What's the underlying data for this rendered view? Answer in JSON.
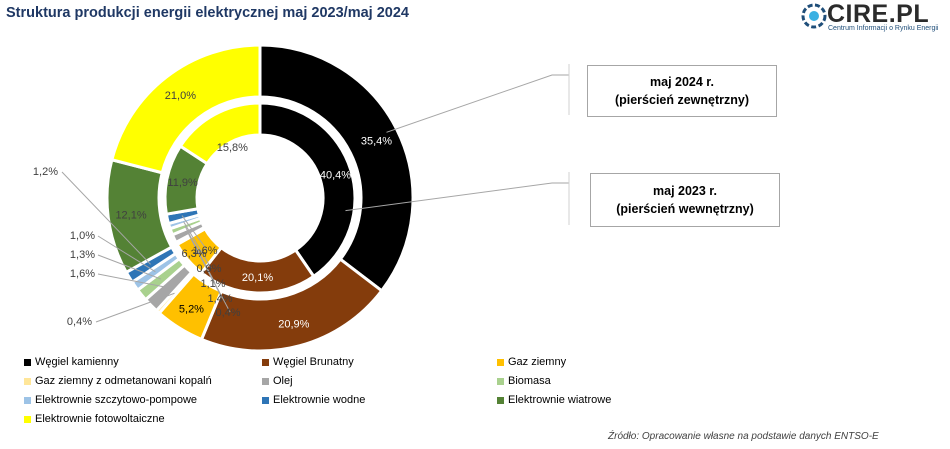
{
  "title": "Struktura produkcji energii elektrycznej maj 2023/maj 2024",
  "logo": {
    "text": "CIRE.PL",
    "subtitle": "Centrum Informacji o Rynku Energii"
  },
  "callouts": {
    "outer": {
      "line1": "maj 2024 r.",
      "line2": "(pierścień zewnętrzny)"
    },
    "inner": {
      "line1": "maj 2023 r.",
      "line2": "(pierścień wewnętrzny)"
    }
  },
  "source": "Źródło: Opracowanie własne na podstawie danych ENTSO-E",
  "chart_data": {
    "type": "doughnut",
    "categories": [
      "Węgiel kamienny",
      "Węgiel Brunatny",
      "Gaz  ziemny",
      "Gaz ziemny z odmetanowani kopalń",
      "Olej",
      "Biomasa",
      "Elektrownie szczytowo-pompowe",
      "Elektrownie wodne",
      "Elektrownie wiatrowe",
      "Elektrownie fotowoltaiczne"
    ],
    "colors": [
      "#000000",
      "#843c0c",
      "#ffc000",
      "#ffe699",
      "#a6a6a6",
      "#a9d18e",
      "#9dc3e6",
      "#2e75b6",
      "#548235",
      "#ffff00"
    ],
    "series": [
      {
        "name": "maj 2024 r.",
        "values": [
          35.4,
          20.9,
          5.2,
          0.4,
          1.6,
          1.3,
          1.0,
          1.2,
          12.1,
          21.0
        ],
        "labels": [
          "35,4%",
          "20,9%",
          "5,2%",
          "0,4%",
          "1,6%",
          "1,3%",
          "1,0%",
          "1,2%",
          "12,1%",
          "21,0%"
        ]
      },
      {
        "name": "maj 2023 r.",
        "values": [
          40.4,
          20.1,
          6.3,
          0.4,
          1.4,
          1.1,
          0.9,
          1.6,
          11.9,
          15.8
        ],
        "labels": [
          "40,4%",
          "20,1%",
          "6,3%",
          "0,4%",
          "1,4%",
          "1,1%",
          "0,9%",
          "1,6%",
          "11,9%",
          "15,8%"
        ]
      }
    ]
  }
}
